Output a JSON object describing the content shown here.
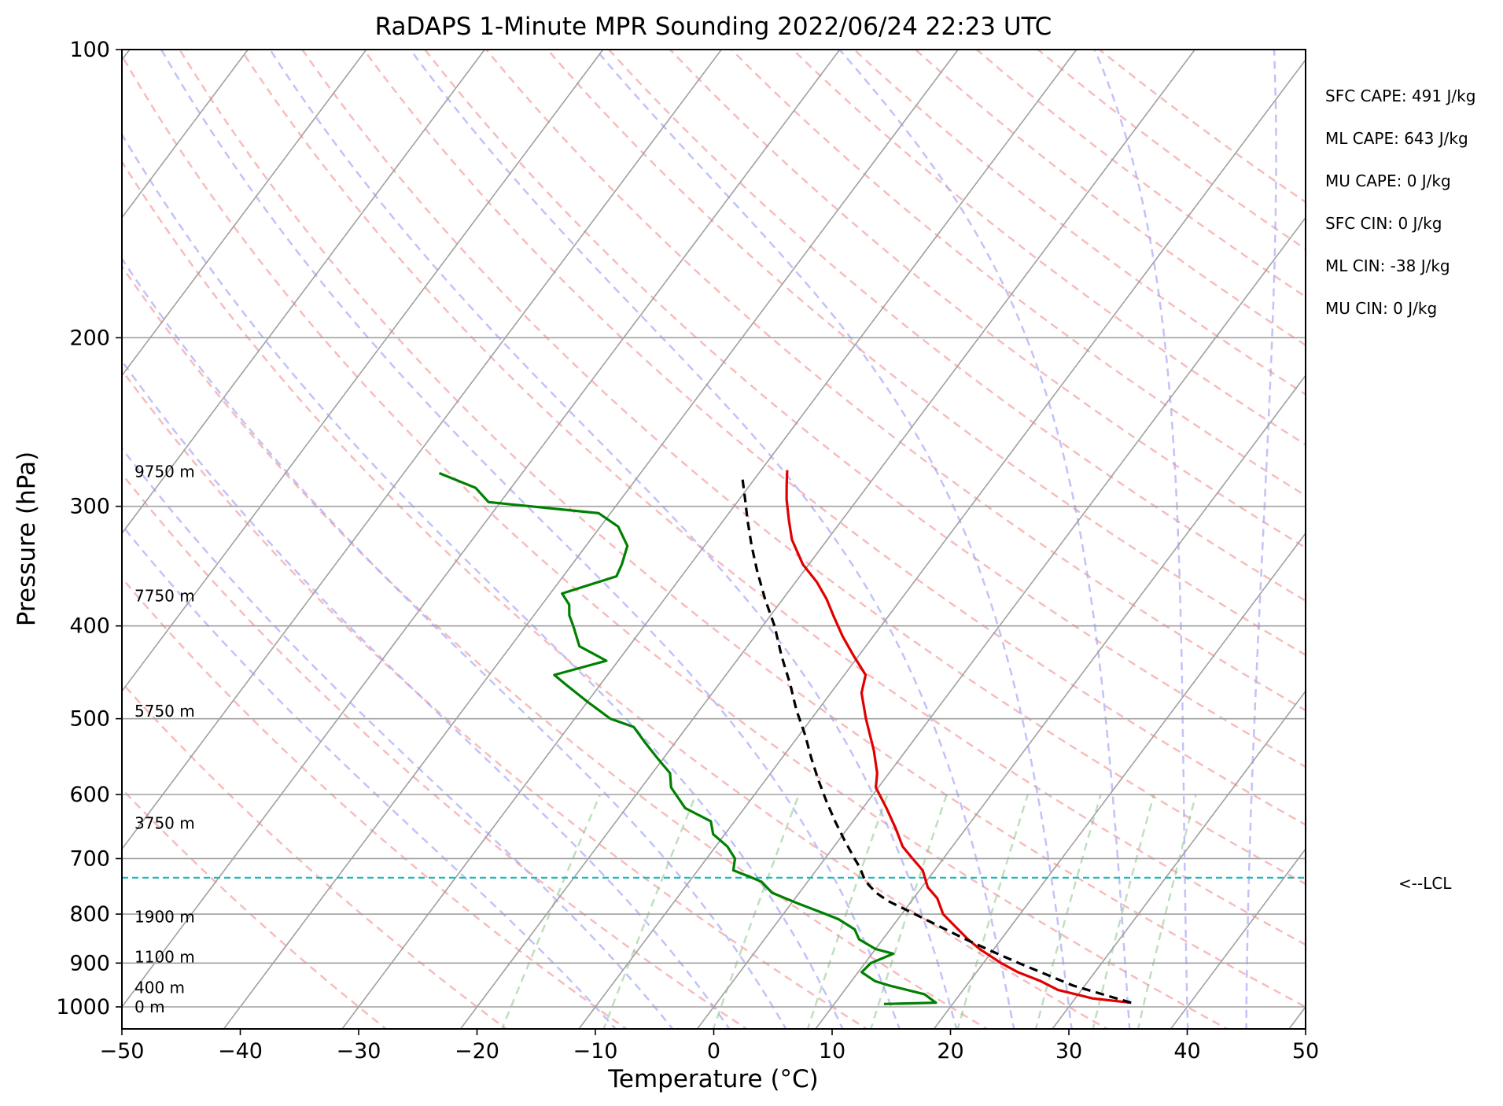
{
  "chart_data": {
    "type": "line",
    "title": "RaDAPS 1-Minute MPR Sounding 2022/06/24 22:23 UTC",
    "xlabel": "Temperature (°C)",
    "ylabel": "Pressure (hPa)",
    "xlim": [
      -50,
      50
    ],
    "ylim": [
      1050,
      100
    ],
    "y_scale": "log",
    "grid": true,
    "x_ticks": [
      -50,
      -40,
      -30,
      -20,
      -10,
      0,
      10,
      20,
      30,
      40,
      50
    ],
    "y_ticks": [
      1000,
      900,
      800,
      700,
      600,
      500,
      400,
      300,
      200,
      100
    ],
    "height_labels": [
      {
        "text": "0 m",
        "p": 1000
      },
      {
        "text": "400 m",
        "p": 955
      },
      {
        "text": "1100 m",
        "p": 887
      },
      {
        "text": "1900 m",
        "p": 805
      },
      {
        "text": "3750 m",
        "p": 643
      },
      {
        "text": "5750 m",
        "p": 491
      },
      {
        "text": "7750 m",
        "p": 372
      },
      {
        "text": "9750 m",
        "p": 276
      }
    ],
    "parameters": [
      "SFC CAPE: 491 J/kg",
      "ML CAPE: 643 J/kg",
      "MU CAPE: 0 J/kg",
      "SFC CIN: 0 J/kg",
      "ML CIN: -38 J/kg",
      "MU CIN: 0 J/kg"
    ],
    "lcl": {
      "p": 733,
      "label": "<--LCL"
    },
    "series": [
      {
        "color": "#e00000",
        "style": "solid",
        "points": [
          [
            35.0,
            990
          ],
          [
            31.5,
            980
          ],
          [
            28.0,
            960
          ],
          [
            26.0,
            940
          ],
          [
            23.5,
            920
          ],
          [
            21.5,
            900
          ],
          [
            18.8,
            870
          ],
          [
            17.2,
            850
          ],
          [
            15.0,
            820
          ],
          [
            13.5,
            800
          ],
          [
            12.0,
            770
          ],
          [
            10.5,
            750
          ],
          [
            9.0,
            720
          ],
          [
            7.4,
            700
          ],
          [
            5.8,
            680
          ],
          [
            4.0,
            650
          ],
          [
            2.0,
            620
          ],
          [
            -0.2,
            590
          ],
          [
            -1.0,
            570
          ],
          [
            -2.7,
            540
          ],
          [
            -5.4,
            500
          ],
          [
            -7.4,
            470
          ],
          [
            -8.2,
            450
          ],
          [
            -10.4,
            430
          ],
          [
            -12.6,
            410
          ],
          [
            -14.7,
            390
          ],
          [
            -16.3,
            375
          ],
          [
            -18.2,
            360
          ],
          [
            -20.5,
            345
          ],
          [
            -23.0,
            325
          ],
          [
            -24.5,
            310
          ],
          [
            -26.0,
            295
          ],
          [
            -26.9,
            285
          ],
          [
            -27.8,
            275
          ]
        ]
      },
      {
        "color": "#008000",
        "style": "solid",
        "points": [
          [
            14.2,
            993
          ],
          [
            18.5,
            990
          ],
          [
            17.0,
            970
          ],
          [
            13.5,
            950
          ],
          [
            12.0,
            940
          ],
          [
            10.3,
            920
          ],
          [
            10.5,
            900
          ],
          [
            11.8,
            880
          ],
          [
            10.0,
            870
          ],
          [
            8.0,
            850
          ],
          [
            7.0,
            830
          ],
          [
            5.0,
            810
          ],
          [
            3.6,
            800
          ],
          [
            0.6,
            780
          ],
          [
            -2.3,
            760
          ],
          [
            -3.9,
            740
          ],
          [
            -5.4,
            730
          ],
          [
            -7.0,
            720
          ],
          [
            -7.6,
            700
          ],
          [
            -9.0,
            680
          ],
          [
            -11.0,
            660
          ],
          [
            -12.0,
            640
          ],
          [
            -15.0,
            620
          ],
          [
            -17.5,
            590
          ],
          [
            -18.5,
            570
          ],
          [
            -20.5,
            550
          ],
          [
            -22.5,
            530
          ],
          [
            -24.5,
            510
          ],
          [
            -27.0,
            500
          ],
          [
            -30.0,
            480
          ],
          [
            -33.0,
            460
          ],
          [
            -34.5,
            450
          ],
          [
            -31.0,
            435
          ],
          [
            -34.2,
            420
          ],
          [
            -36.0,
            400
          ],
          [
            -37.0,
            390
          ],
          [
            -37.7,
            380
          ],
          [
            -39.0,
            370
          ],
          [
            -35.5,
            355
          ],
          [
            -35.8,
            345
          ],
          [
            -36.5,
            330
          ],
          [
            -38.5,
            315
          ],
          [
            -41.0,
            305
          ],
          [
            -51.0,
            297
          ],
          [
            -53.0,
            287
          ],
          [
            -57.0,
            277
          ]
        ]
      },
      {
        "color": "#000000",
        "style": "dashed",
        "points": [
          [
            35.0,
            990
          ],
          [
            29.0,
            950
          ],
          [
            23.0,
            900
          ],
          [
            20.0,
            875
          ],
          [
            17.0,
            850
          ],
          [
            13.5,
            820
          ],
          [
            10.5,
            795
          ],
          [
            8.0,
            775
          ],
          [
            6.5,
            760
          ],
          [
            5.3,
            745
          ],
          [
            4.5,
            733
          ],
          [
            3.5,
            715
          ],
          [
            2.5,
            700
          ],
          [
            0.5,
            670
          ],
          [
            -1.5,
            640
          ],
          [
            -3.5,
            610
          ],
          [
            -5.5,
            580
          ],
          [
            -7.5,
            550
          ],
          [
            -9.5,
            520
          ],
          [
            -11.8,
            490
          ],
          [
            -14.0,
            460
          ],
          [
            -16.5,
            430
          ],
          [
            -19.0,
            400
          ],
          [
            -21.5,
            375
          ],
          [
            -24.0,
            350
          ],
          [
            -26.0,
            330
          ],
          [
            -28.0,
            310
          ],
          [
            -29.5,
            295
          ],
          [
            -31.0,
            281
          ]
        ]
      }
    ]
  }
}
